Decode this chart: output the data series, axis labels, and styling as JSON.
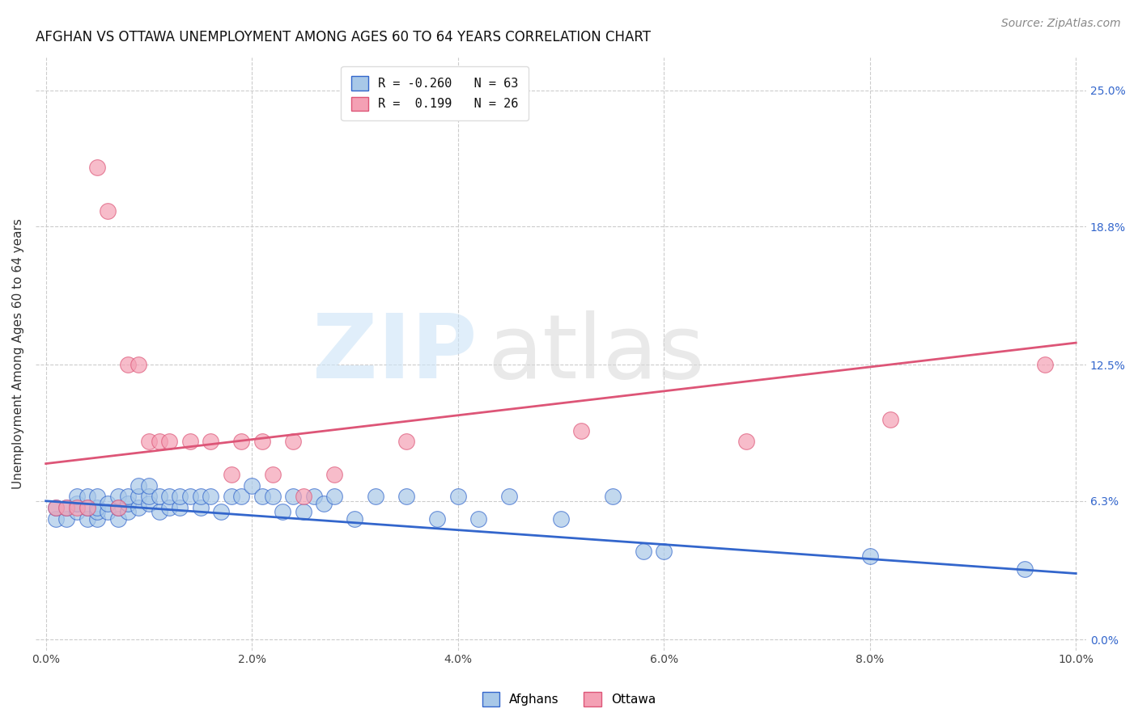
{
  "title": "AFGHAN VS OTTAWA UNEMPLOYMENT AMONG AGES 60 TO 64 YEARS CORRELATION CHART",
  "source": "Source: ZipAtlas.com",
  "ylabel": "Unemployment Among Ages 60 to 64 years",
  "ytick_labels": [
    "0.0%",
    "6.3%",
    "12.5%",
    "18.8%",
    "25.0%"
  ],
  "ytick_vals": [
    0.0,
    0.063,
    0.125,
    0.188,
    0.25
  ],
  "xlabel_ticks": [
    "0.0%",
    "2.0%",
    "4.0%",
    "6.0%",
    "8.0%",
    "10.0%"
  ],
  "xlabel_vals": [
    0.0,
    0.02,
    0.04,
    0.06,
    0.08,
    0.1
  ],
  "xlim": [
    -0.001,
    0.101
  ],
  "ylim": [
    -0.005,
    0.265
  ],
  "afghans_R": -0.26,
  "afghans_N": 63,
  "ottawa_R": 0.199,
  "ottawa_N": 26,
  "afghans_color": "#a8c8e8",
  "ottawa_color": "#f4a0b4",
  "afghans_line_color": "#3366cc",
  "ottawa_line_color": "#dd5577",
  "background_color": "#ffffff",
  "grid_color": "#cccccc",
  "afghans_x": [
    0.001,
    0.001,
    0.002,
    0.002,
    0.003,
    0.003,
    0.003,
    0.004,
    0.004,
    0.004,
    0.005,
    0.005,
    0.005,
    0.005,
    0.006,
    0.006,
    0.007,
    0.007,
    0.007,
    0.008,
    0.008,
    0.008,
    0.009,
    0.009,
    0.009,
    0.01,
    0.01,
    0.01,
    0.011,
    0.011,
    0.012,
    0.012,
    0.013,
    0.013,
    0.014,
    0.015,
    0.015,
    0.016,
    0.017,
    0.018,
    0.019,
    0.02,
    0.021,
    0.022,
    0.023,
    0.024,
    0.025,
    0.026,
    0.027,
    0.028,
    0.03,
    0.032,
    0.035,
    0.038,
    0.04,
    0.042,
    0.045,
    0.05,
    0.055,
    0.058,
    0.06,
    0.08,
    0.095
  ],
  "afghans_y": [
    0.055,
    0.06,
    0.055,
    0.06,
    0.058,
    0.062,
    0.065,
    0.055,
    0.06,
    0.065,
    0.055,
    0.058,
    0.06,
    0.065,
    0.058,
    0.062,
    0.055,
    0.06,
    0.065,
    0.058,
    0.062,
    0.065,
    0.06,
    0.065,
    0.07,
    0.062,
    0.065,
    0.07,
    0.058,
    0.065,
    0.06,
    0.065,
    0.06,
    0.065,
    0.065,
    0.06,
    0.065,
    0.065,
    0.058,
    0.065,
    0.065,
    0.07,
    0.065,
    0.065,
    0.058,
    0.065,
    0.058,
    0.065,
    0.062,
    0.065,
    0.055,
    0.065,
    0.065,
    0.055,
    0.065,
    0.055,
    0.065,
    0.055,
    0.065,
    0.04,
    0.04,
    0.038,
    0.032
  ],
  "ottawa_x": [
    0.001,
    0.002,
    0.003,
    0.004,
    0.005,
    0.006,
    0.007,
    0.008,
    0.009,
    0.01,
    0.011,
    0.012,
    0.014,
    0.016,
    0.018,
    0.019,
    0.021,
    0.022,
    0.024,
    0.025,
    0.028,
    0.035,
    0.052,
    0.068,
    0.082,
    0.097
  ],
  "ottawa_y": [
    0.06,
    0.06,
    0.06,
    0.06,
    0.215,
    0.195,
    0.06,
    0.125,
    0.125,
    0.09,
    0.09,
    0.09,
    0.09,
    0.09,
    0.075,
    0.09,
    0.09,
    0.075,
    0.09,
    0.065,
    0.075,
    0.09,
    0.095,
    0.09,
    0.1,
    0.125
  ],
  "title_fontsize": 12,
  "axis_label_fontsize": 11,
  "tick_fontsize": 10,
  "source_fontsize": 10,
  "legend_fontsize": 11
}
